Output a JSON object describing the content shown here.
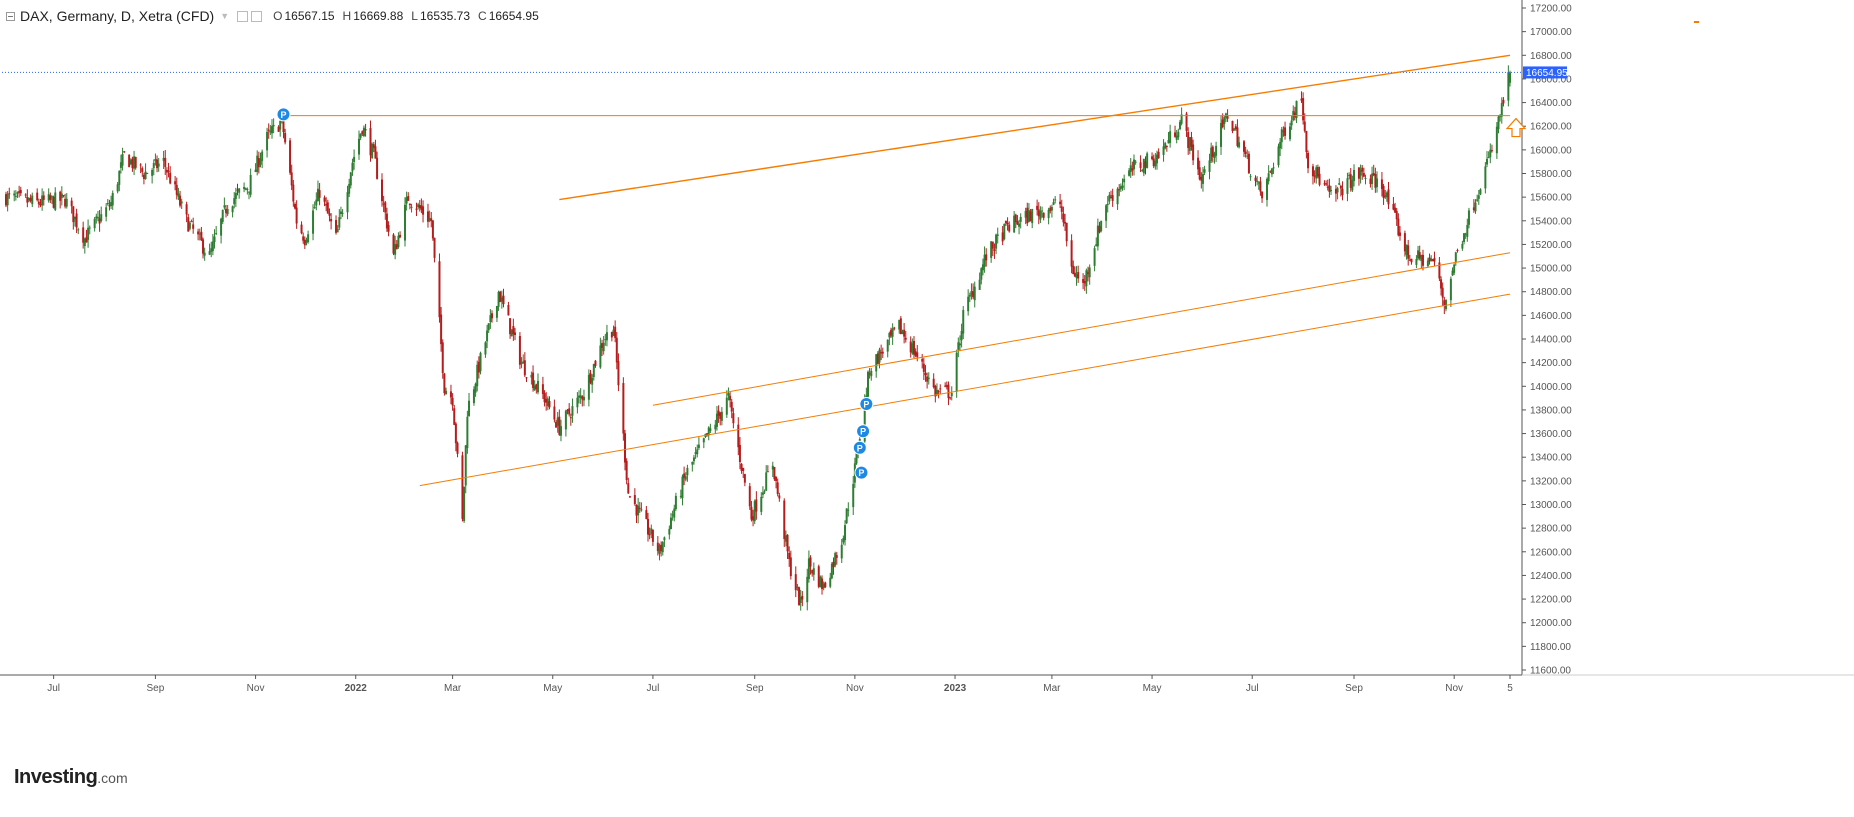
{
  "header": {
    "symbol_title": "DAX, Germany, D, Xetra (CFD)",
    "open_label": "O",
    "open_value": "16567.15",
    "high_label": "H",
    "high_value": "16669.88",
    "low_label": "L",
    "low_value": "16535.73",
    "close_label": "C",
    "close_value": "16654.95"
  },
  "brand": {
    "name": "Investing",
    "suffix": ".com"
  },
  "colors": {
    "up": "#2e7d32",
    "down": "#b71c1c",
    "trendline": "#f57c00",
    "price_tag": "#2962ff",
    "axis_text": "#555555",
    "marker": "#1e88e5"
  },
  "chart_data": {
    "type": "candlestick",
    "title": "DAX, Germany, D, Xetra (CFD)",
    "xlabel": "",
    "ylabel": "",
    "ylim": [
      11600,
      17200
    ],
    "y_ticks": [
      "11600.00",
      "11800.00",
      "12000.00",
      "12200.00",
      "12400.00",
      "12600.00",
      "12800.00",
      "13000.00",
      "13200.00",
      "13400.00",
      "13600.00",
      "13800.00",
      "14000.00",
      "14200.00",
      "14400.00",
      "14600.00",
      "14800.00",
      "15000.00",
      "15200.00",
      "15400.00",
      "15600.00",
      "15800.00",
      "16000.00",
      "16200.00",
      "16400.00",
      "16600.00",
      "16800.00",
      "17000.00",
      "17200.00"
    ],
    "x_ticks": [
      {
        "label": "Jul",
        "date": "2021-07-01"
      },
      {
        "label": "Sep",
        "date": "2021-09-01"
      },
      {
        "label": "Nov",
        "date": "2021-11-01"
      },
      {
        "label": "2022",
        "date": "2022-01-01"
      },
      {
        "label": "Mar",
        "date": "2022-03-01"
      },
      {
        "label": "May",
        "date": "2022-05-01"
      },
      {
        "label": "Jul",
        "date": "2022-07-01"
      },
      {
        "label": "Sep",
        "date": "2022-09-01"
      },
      {
        "label": "Nov",
        "date": "2022-11-01"
      },
      {
        "label": "2023",
        "date": "2023-01-01"
      },
      {
        "label": "Mar",
        "date": "2023-03-01"
      },
      {
        "label": "May",
        "date": "2023-05-01"
      },
      {
        "label": "Jul",
        "date": "2023-07-01"
      },
      {
        "label": "Sep",
        "date": "2023-09-01"
      },
      {
        "label": "Nov",
        "date": "2023-11-01"
      },
      {
        "label": "5",
        "date": "2023-12-05"
      }
    ],
    "x_range": [
      "2021-06-02",
      "2023-12-05"
    ],
    "last_price": {
      "value": 16654.95,
      "label": "16654.95"
    },
    "price_anchors": [
      [
        "2021-06-02",
        15600
      ],
      [
        "2021-06-20",
        15550
      ],
      [
        "2021-07-08",
        15580
      ],
      [
        "2021-07-20",
        15250
      ],
      [
        "2021-08-05",
        15550
      ],
      [
        "2021-08-13",
        15950
      ],
      [
        "2021-08-25",
        15800
      ],
      [
        "2021-09-06",
        15900
      ],
      [
        "2021-09-20",
        15400
      ],
      [
        "2021-10-04",
        15100
      ],
      [
        "2021-10-15",
        15550
      ],
      [
        "2021-10-28",
        15700
      ],
      [
        "2021-11-08",
        16100
      ],
      [
        "2021-11-17",
        16250
      ],
      [
        "2021-11-26",
        15400
      ],
      [
        "2021-12-01",
        15250
      ],
      [
        "2021-12-10",
        15650
      ],
      [
        "2021-12-20",
        15250
      ],
      [
        "2021-12-30",
        15900
      ],
      [
        "2022-01-05",
        16200
      ],
      [
        "2022-01-12",
        15950
      ],
      [
        "2022-01-24",
        15100
      ],
      [
        "2022-02-02",
        15600
      ],
      [
        "2022-02-16",
        15400
      ],
      [
        "2022-02-24",
        14000
      ],
      [
        "2022-03-01",
        13900
      ],
      [
        "2022-03-07",
        12850
      ],
      [
        "2022-03-10",
        13800
      ],
      [
        "2022-03-29",
        14800
      ],
      [
        "2022-04-12",
        14200
      ],
      [
        "2022-04-26",
        13900
      ],
      [
        "2022-05-05",
        13650
      ],
      [
        "2022-05-20",
        13950
      ],
      [
        "2022-06-01",
        14400
      ],
      [
        "2022-06-07",
        14500
      ],
      [
        "2022-06-16",
        13100
      ],
      [
        "2022-07-05",
        12600
      ],
      [
        "2022-07-21",
        13250
      ],
      [
        "2022-08-04",
        13600
      ],
      [
        "2022-08-16",
        13900
      ],
      [
        "2022-08-30",
        12900
      ],
      [
        "2022-09-12",
        13350
      ],
      [
        "2022-09-22",
        12500
      ],
      [
        "2022-09-29",
        12150
      ],
      [
        "2022-10-04",
        12500
      ],
      [
        "2022-10-13",
        12300
      ],
      [
        "2022-10-24",
        12700
      ],
      [
        "2022-11-01",
        13300
      ],
      [
        "2022-11-10",
        14150
      ],
      [
        "2022-11-28",
        14500
      ],
      [
        "2022-12-07",
        14300
      ],
      [
        "2022-12-20",
        13950
      ],
      [
        "2022-12-30",
        13950
      ],
      [
        "2023-01-06",
        14600
      ],
      [
        "2023-01-20",
        15100
      ],
      [
        "2023-02-02",
        15350
      ],
      [
        "2023-02-16",
        15450
      ],
      [
        "2023-03-06",
        15550
      ],
      [
        "2023-03-13",
        15000
      ],
      [
        "2023-03-20",
        14850
      ],
      [
        "2023-04-03",
        15550
      ],
      [
        "2023-04-20",
        15850
      ],
      [
        "2023-05-05",
        15950
      ],
      [
        "2023-05-19",
        16250
      ],
      [
        "2023-05-31",
        15750
      ],
      [
        "2023-06-16",
        16300
      ],
      [
        "2023-06-28",
        15900
      ],
      [
        "2023-07-07",
        15600
      ],
      [
        "2023-07-20",
        16150
      ],
      [
        "2023-07-31",
        16450
      ],
      [
        "2023-08-04",
        15900
      ],
      [
        "2023-08-18",
        15600
      ],
      [
        "2023-09-04",
        15800
      ],
      [
        "2023-09-18",
        15700
      ],
      [
        "2023-10-04",
        15100
      ],
      [
        "2023-10-20",
        15050
      ],
      [
        "2023-10-26",
        14700
      ],
      [
        "2023-11-02",
        15100
      ],
      [
        "2023-11-14",
        15600
      ],
      [
        "2023-11-24",
        16000
      ],
      [
        "2023-12-05",
        16654.95
      ]
    ],
    "lines": [
      {
        "name": "resistance-horizontal",
        "points": [
          [
            "2021-11-18",
            16290
          ],
          [
            "2023-12-05",
            16290
          ]
        ]
      },
      {
        "name": "upper-channel",
        "points": [
          [
            "2022-05-05",
            15580
          ],
          [
            "2023-12-05",
            16800
          ]
        ]
      },
      {
        "name": "mid-channel",
        "points": [
          [
            "2022-07-01",
            13840
          ],
          [
            "2023-12-05",
            15130
          ]
        ]
      },
      {
        "name": "lower-channel",
        "points": [
          [
            "2022-02-09",
            13160
          ],
          [
            "2023-12-05",
            14780
          ]
        ]
      }
    ],
    "p_markers": [
      {
        "label": "P",
        "date": "2021-11-18",
        "value": 16300
      },
      {
        "label": "P",
        "date": "2022-11-08",
        "value": 13850
      },
      {
        "label": "P",
        "date": "2022-11-06",
        "value": 13620
      },
      {
        "label": "P",
        "date": "2022-11-04",
        "value": 13480
      },
      {
        "label": "P",
        "date": "2022-11-05",
        "value": 13270
      }
    ],
    "arrow_annotation": {
      "date": "2023-12-05",
      "value": 16180,
      "direction": "up"
    }
  }
}
